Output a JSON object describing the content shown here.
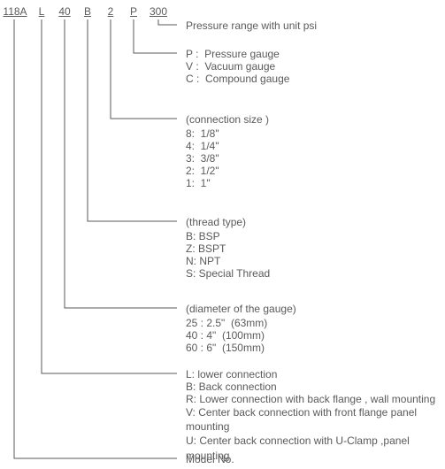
{
  "code": {
    "seg1": "118A",
    "seg2": "L",
    "seg3": "40",
    "seg4": "B",
    "seg5": "2",
    "seg6": "P",
    "seg7": "300"
  },
  "pressure_range": {
    "label": "Pressure range with unit psi"
  },
  "gauge_type": {
    "rows": [
      "P :  Pressure gauge",
      "V :  Vacuum gauge",
      "C :  Compound gauge"
    ]
  },
  "connection_size": {
    "header": "(connection size )",
    "rows": [
      "8:  1/8\"",
      "4:  1/4\"",
      "3:  3/8\"",
      "2:  1/2\"",
      "1:  1\""
    ]
  },
  "thread_type": {
    "header": "(thread type)",
    "rows": [
      "B: BSP",
      "Z: BSPT",
      "N: NPT",
      "S: Special Thread"
    ]
  },
  "diameter": {
    "header": "(diameter of the gauge)",
    "rows": [
      "25 : 2.5\"  (63mm)",
      "40 : 4\"  (100mm)",
      "60 : 6\"  (150mm)"
    ]
  },
  "connection_pos": {
    "rows": [
      "L: lower connection",
      "B: Back connection",
      "R: Lower connection with back flange , wall mounting",
      "V: Center back connection with front flange panel mounting",
      "U: Center back connection with U-Clamp ,panel mounting"
    ]
  },
  "model": {
    "label": "Model No."
  },
  "lines": {
    "stroke": "#5a5a5a",
    "stroke_width": 1,
    "paths": [
      "M179 22 L179 28 L200 28",
      "M151 22 L151 60 L200 60",
      "M125 22 L125 134 L200 134",
      "M99 22 L99 250 L200 250",
      "M73 22 L73 348 L200 348",
      "M47 22 L47 422 L200 422",
      "M16 22 L16 518 L200 518"
    ]
  }
}
